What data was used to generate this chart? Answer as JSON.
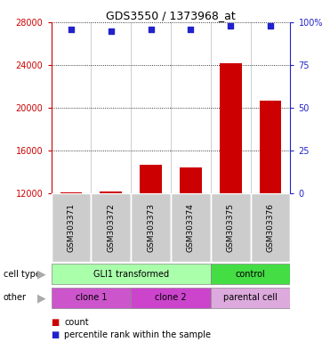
{
  "title": "GDS3550 / 1373968_at",
  "samples": [
    "GSM303371",
    "GSM303372",
    "GSM303373",
    "GSM303374",
    "GSM303375",
    "GSM303376"
  ],
  "counts": [
    12100,
    12150,
    14700,
    14400,
    24200,
    20700
  ],
  "percentile_ranks": [
    96,
    95,
    96,
    96,
    98,
    98
  ],
  "ylim_left": [
    12000,
    28000
  ],
  "ylim_right": [
    0,
    100
  ],
  "yticks_left": [
    12000,
    16000,
    20000,
    24000,
    28000
  ],
  "yticks_right": [
    0,
    25,
    50,
    75,
    100
  ],
  "bar_color": "#cc0000",
  "dot_color": "#2222cc",
  "bar_width": 0.55,
  "cell_type_row": {
    "GLI1 transformed": [
      0,
      3
    ],
    "control": [
      4,
      5
    ]
  },
  "cell_type_colors": {
    "GLI1 transformed": "#aaffaa",
    "control": "#44dd44"
  },
  "other_row": {
    "clone 1": [
      0,
      1
    ],
    "clone 2": [
      2,
      3
    ],
    "parental cell": [
      4,
      5
    ]
  },
  "other_colors": {
    "clone 1": "#cc55cc",
    "clone 2": "#cc44cc",
    "parental cell": "#ddaadd"
  },
  "legend_count_color": "#cc0000",
  "legend_dot_color": "#2222cc",
  "background_color": "#ffffff",
  "left_axis_color": "#cc0000",
  "right_axis_color": "#2222cc",
  "sep_color": "#888888",
  "grid_style": ":"
}
